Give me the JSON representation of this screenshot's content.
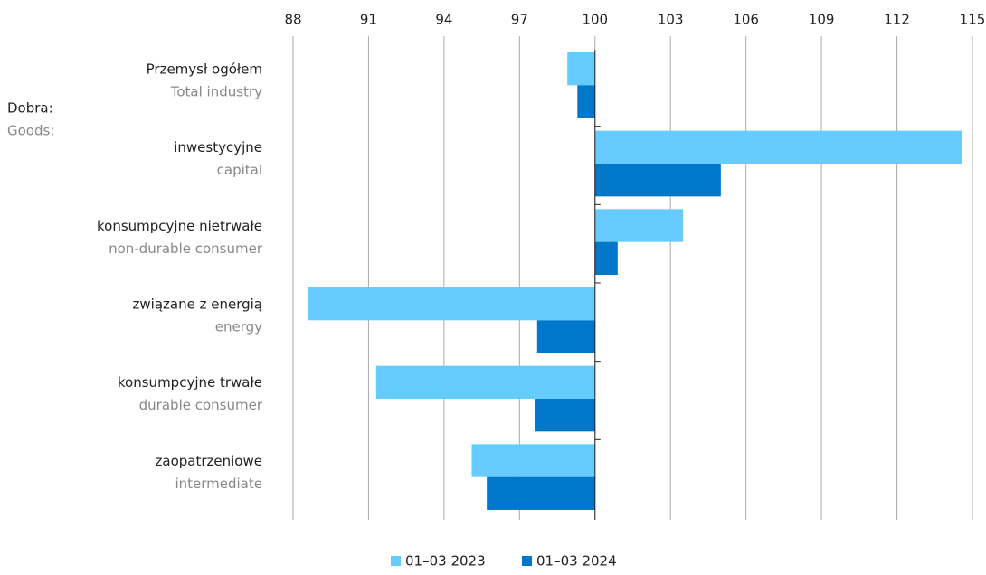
{
  "chart_data": {
    "type": "bar",
    "orientation": "horizontal",
    "base": 100,
    "categories": [
      "Przemysł ogółem",
      "inwestycyjne",
      "konsumpcyjne nietrwałe",
      "związane z energią",
      "konsumpcyjne trwałe",
      "zaopatrzeniowe"
    ],
    "category_subtitles": [
      "Total industry",
      "capital",
      "non-durable consumer",
      "energy",
      "durable consumer",
      "intermediate"
    ],
    "group_label": [
      "Dobra:",
      "Goods:"
    ],
    "series": [
      {
        "name": "01–03 2023",
        "color": "#66ccff",
        "values": [
          98.9,
          114.6,
          103.5,
          88.6,
          91.3,
          95.1
        ]
      },
      {
        "name": "01–03 2024",
        "color": "#0077c8",
        "values": [
          99.3,
          105.0,
          100.9,
          97.7,
          97.6,
          95.7
        ]
      }
    ],
    "xlim": [
      88,
      115
    ],
    "xticks": [
      88,
      91,
      94,
      97,
      100,
      103,
      106,
      109,
      112,
      115
    ],
    "grid": true
  }
}
